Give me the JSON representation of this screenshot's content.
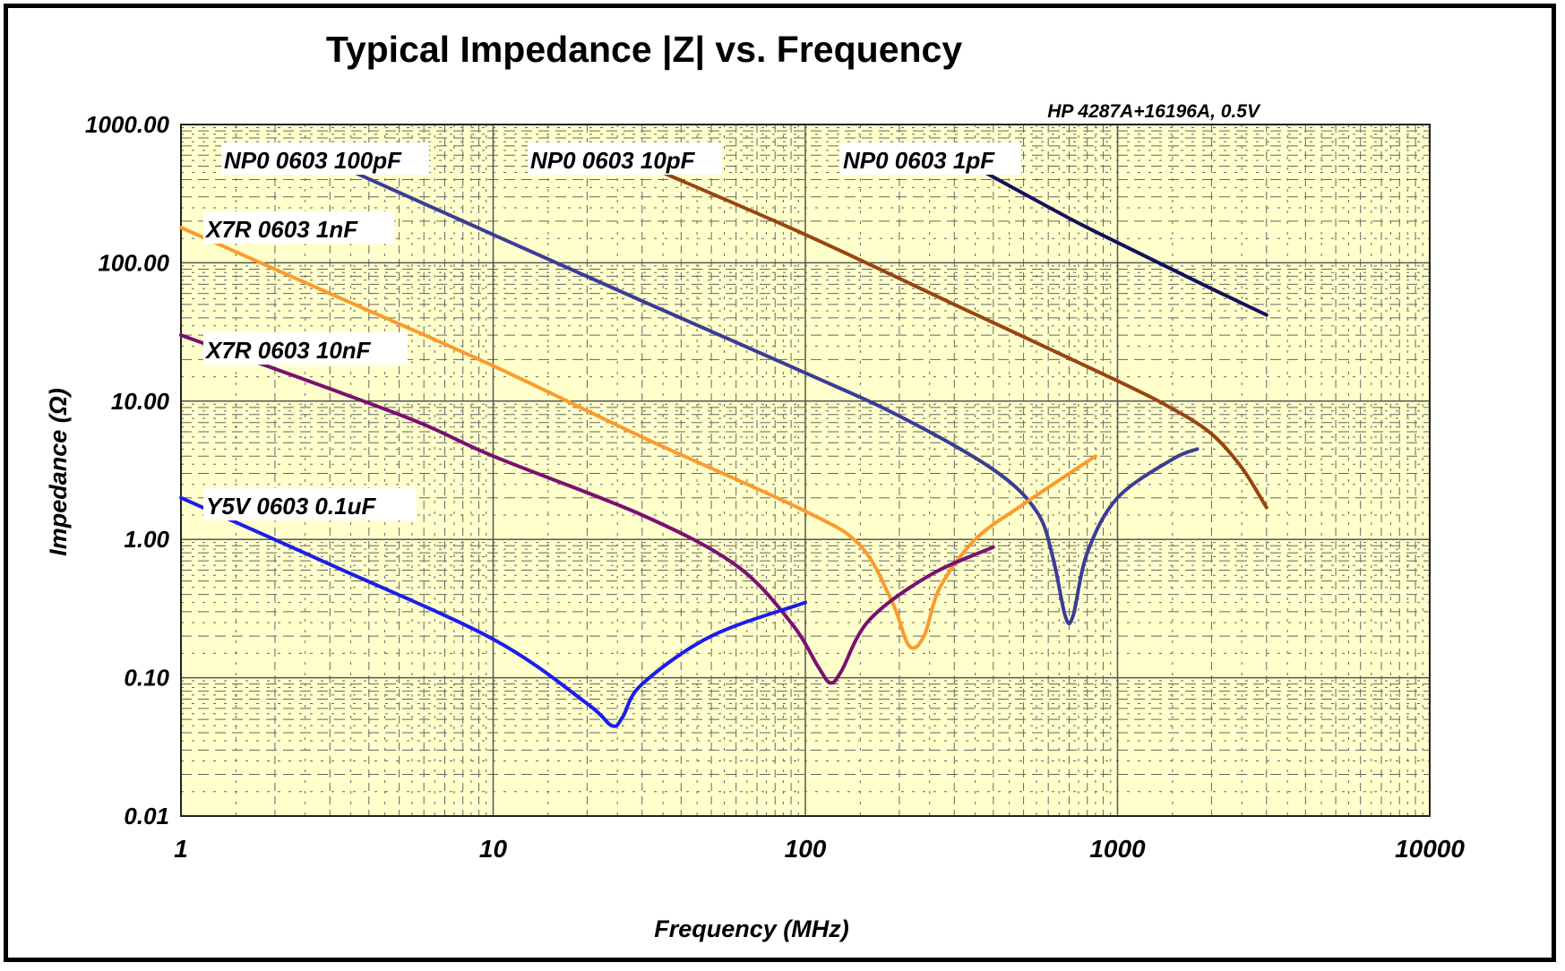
{
  "chart_data": {
    "type": "line",
    "title": "Typical Impedance |Z| vs. Frequency",
    "annotation": "HP 4287A+16196A, 0.5V",
    "xlabel": "Frequency (MHz)",
    "ylabel": "Impedance (Ω)",
    "x_scale": "log",
    "y_scale": "log",
    "xlim": [
      1,
      10000
    ],
    "ylim": [
      0.01,
      1000
    ],
    "x_ticks": [
      "1",
      "10",
      "100",
      "1000",
      "10000"
    ],
    "y_ticks": [
      "0.01",
      "0.10",
      "1.00",
      "10.00",
      "100.00",
      "1000.00"
    ],
    "grid": true,
    "plot_background": "#ffffcc",
    "series": [
      {
        "name": "NP0 0603 100pF",
        "color": "#3c3c96",
        "x": [
          3,
          10,
          30,
          100,
          200,
          400,
          550,
          620,
          680,
          720,
          800,
          1000,
          1500,
          1800
        ],
        "y": [
          540,
          160,
          53,
          16,
          7.8,
          3.2,
          1.6,
          0.75,
          0.28,
          0.28,
          0.8,
          2.0,
          3.8,
          4.5
        ]
      },
      {
        "name": "NP0 0603 10pF",
        "color": "#99440f",
        "x": [
          30,
          100,
          300,
          1000,
          1500,
          2000,
          2500,
          3000
        ],
        "y": [
          520,
          160,
          50,
          14,
          8.8,
          5.8,
          3.3,
          1.7
        ]
      },
      {
        "name": "NP0 0603 1pF",
        "color": "#12125c",
        "x": [
          370,
          700,
          1000,
          2000,
          3000
        ],
        "y": [
          460,
          210,
          140,
          65,
          42
        ]
      },
      {
        "name": "X7R 0603 1nF",
        "color": "#fa9b2e",
        "x": [
          1,
          3,
          10,
          30,
          100,
          150,
          190,
          215,
          240,
          270,
          350,
          500,
          850
        ],
        "y": [
          180,
          60,
          18,
          5.5,
          1.6,
          0.9,
          0.35,
          0.17,
          0.2,
          0.45,
          1.0,
          1.8,
          4.0
        ]
      },
      {
        "name": "X7R 0603 10nF",
        "color": "#7a1070",
        "x": [
          1,
          5,
          10,
          30,
          60,
          90,
          110,
          120,
          130,
          160,
          250,
          400
        ],
        "y": [
          30,
          8,
          4,
          1.5,
          0.65,
          0.25,
          0.12,
          0.092,
          0.11,
          0.26,
          0.55,
          0.88
        ]
      },
      {
        "name": "Y5V 0603 0.1uF",
        "color": "#1c1ced",
        "x": [
          1,
          3,
          10,
          20,
          24,
          26,
          30,
          50,
          100
        ],
        "y": [
          2.0,
          0.66,
          0.19,
          0.065,
          0.045,
          0.052,
          0.09,
          0.2,
          0.35
        ]
      }
    ]
  }
}
